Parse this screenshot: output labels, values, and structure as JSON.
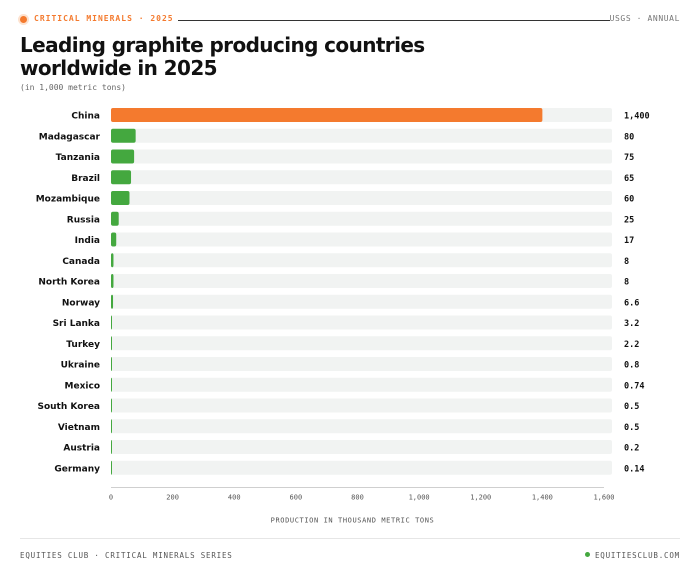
{
  "header": {
    "kicker": "CRITICAL MINERALS · 2025",
    "source": "USGS · ANNUAL",
    "title": "Leading graphite producing countries worldwide in 2025",
    "subtitle": "(in 1,000 metric tons)"
  },
  "colors": {
    "highlight": "#f47a2e",
    "bar": "#44a83f",
    "track": "#f1f3f2",
    "text": "#111111"
  },
  "chart_data": {
    "type": "bar",
    "orientation": "horizontal",
    "title": "Leading graphite producing countries worldwide in 2025",
    "xlabel": "PRODUCTION IN THOUSAND METRIC TONS",
    "ylabel": "",
    "categories": [
      "China",
      "Madagascar",
      "Tanzania",
      "Brazil",
      "Mozambique",
      "Russia",
      "India",
      "Canada",
      "North Korea",
      "Norway",
      "Sri Lanka",
      "Turkey",
      "Ukraine",
      "Mexico",
      "South Korea",
      "Vietnam",
      "Austria",
      "Germany"
    ],
    "values": [
      1400,
      80,
      75,
      65,
      60,
      25,
      17,
      8,
      8,
      6.6,
      3.2,
      2.2,
      0.8,
      0.74,
      0.5,
      0.5,
      0.2,
      0.14
    ],
    "value_labels": [
      "1,400",
      "80",
      "75",
      "65",
      "60",
      "25",
      "17",
      "8",
      "8",
      "6.6",
      "3.2",
      "2.2",
      "0.8",
      "0.74",
      "0.5",
      "0.5",
      "0.2",
      "0.14"
    ],
    "highlight_index": 0,
    "xlim": [
      0,
      1600
    ],
    "xticks": [
      0,
      200,
      400,
      600,
      800,
      1000,
      1200,
      1400,
      1600
    ],
    "xtick_labels": [
      "0",
      "200",
      "400",
      "600",
      "800",
      "1,000",
      "1,200",
      "1,400",
      "1,600"
    ],
    "grid": false
  },
  "footer": {
    "left": "EQUITIES CLUB · CRITICAL MINERALS SERIES",
    "right": "EQUITIESCLUB.COM"
  }
}
